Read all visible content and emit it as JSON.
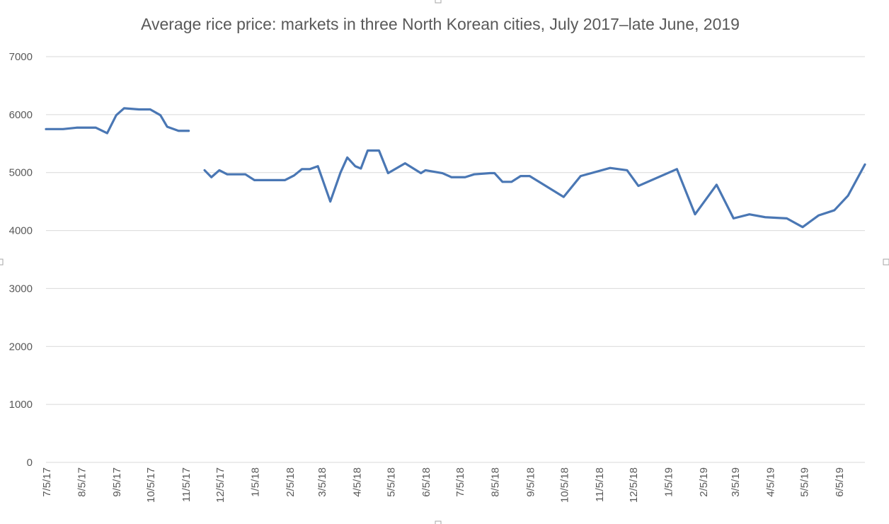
{
  "chart_data": {
    "type": "line",
    "title": "Average rice price: markets in three North Korean cities, July 2017–late June, 2019",
    "xlabel": "",
    "ylabel": "",
    "ylim": [
      0,
      7000
    ],
    "yticks": [
      0,
      1000,
      2000,
      3000,
      4000,
      5000,
      6000,
      7000
    ],
    "ytick_labels": [
      "0",
      "1000",
      "2000",
      "3000",
      "4000",
      "5000",
      "6000",
      "7000"
    ],
    "xlim": [
      "2017-07-05",
      "2019-06-28"
    ],
    "xticks": [
      "2017-07-05",
      "2017-08-05",
      "2017-09-05",
      "2017-10-05",
      "2017-11-05",
      "2017-12-05",
      "2018-01-05",
      "2018-02-05",
      "2018-03-05",
      "2018-04-05",
      "2018-05-05",
      "2018-06-05",
      "2018-07-05",
      "2018-08-05",
      "2018-09-05",
      "2018-10-05",
      "2018-11-05",
      "2018-12-05",
      "2019-01-05",
      "2019-02-05",
      "2019-03-05",
      "2019-04-05",
      "2019-05-05",
      "2019-06-05"
    ],
    "xtick_labels": [
      "7/5/17",
      "8/5/17",
      "9/5/17",
      "10/5/17",
      "11/5/17",
      "12/5/17",
      "1/5/18",
      "2/5/18",
      "3/5/18",
      "4/5/18",
      "5/5/18",
      "6/5/18",
      "7/5/18",
      "8/5/18",
      "9/5/18",
      "10/5/18",
      "11/5/18",
      "12/5/18",
      "1/5/19",
      "2/5/19",
      "3/5/19",
      "4/5/19",
      "5/5/19",
      "6/5/19"
    ],
    "grid": true,
    "legend": "none",
    "colors": {
      "line": "#4a77b4",
      "grid": "#d9d9d9",
      "text": "#595959"
    },
    "series": [
      {
        "segments": [
          [
            {
              "x": "2017-07-05",
              "y": 5750
            },
            {
              "x": "2017-07-12",
              "y": 5750
            },
            {
              "x": "2017-07-20",
              "y": 5750
            },
            {
              "x": "2017-08-01",
              "y": 5775
            },
            {
              "x": "2017-08-10",
              "y": 5775
            },
            {
              "x": "2017-08-18",
              "y": 5775
            },
            {
              "x": "2017-08-28",
              "y": 5680
            },
            {
              "x": "2017-09-05",
              "y": 5990
            },
            {
              "x": "2017-09-12",
              "y": 6110
            },
            {
              "x": "2017-09-25",
              "y": 6090
            },
            {
              "x": "2017-10-05",
              "y": 6090
            },
            {
              "x": "2017-10-14",
              "y": 5990
            },
            {
              "x": "2017-10-20",
              "y": 5790
            },
            {
              "x": "2017-10-30",
              "y": 5720
            },
            {
              "x": "2017-11-08",
              "y": 5720
            }
          ],
          [
            {
              "x": "2017-11-22",
              "y": 5040
            },
            {
              "x": "2017-11-28",
              "y": 4920
            },
            {
              "x": "2017-12-05",
              "y": 5040
            },
            {
              "x": "2017-12-12",
              "y": 4970
            },
            {
              "x": "2017-12-28",
              "y": 4970
            },
            {
              "x": "2018-01-05",
              "y": 4870
            },
            {
              "x": "2018-01-20",
              "y": 4870
            },
            {
              "x": "2018-02-01",
              "y": 4870
            },
            {
              "x": "2018-02-09",
              "y": 4950
            },
            {
              "x": "2018-02-16",
              "y": 5060
            },
            {
              "x": "2018-02-23",
              "y": 5060
            },
            {
              "x": "2018-03-02",
              "y": 5110
            },
            {
              "x": "2018-03-13",
              "y": 4500
            },
            {
              "x": "2018-03-22",
              "y": 5000
            },
            {
              "x": "2018-03-28",
              "y": 5260
            },
            {
              "x": "2018-04-04",
              "y": 5110
            },
            {
              "x": "2018-04-09",
              "y": 5070
            },
            {
              "x": "2018-04-15",
              "y": 5380
            },
            {
              "x": "2018-04-25",
              "y": 5380
            },
            {
              "x": "2018-05-03",
              "y": 4990
            },
            {
              "x": "2018-05-18",
              "y": 5160
            },
            {
              "x": "2018-06-01",
              "y": 4990
            },
            {
              "x": "2018-06-05",
              "y": 5040
            },
            {
              "x": "2018-06-20",
              "y": 4990
            },
            {
              "x": "2018-06-28",
              "y": 4920
            },
            {
              "x": "2018-07-10",
              "y": 4920
            },
            {
              "x": "2018-07-18",
              "y": 4970
            },
            {
              "x": "2018-08-01",
              "y": 4990
            },
            {
              "x": "2018-08-05",
              "y": 4990
            },
            {
              "x": "2018-08-12",
              "y": 4840
            },
            {
              "x": "2018-08-20",
              "y": 4840
            },
            {
              "x": "2018-08-28",
              "y": 4940
            },
            {
              "x": "2018-09-05",
              "y": 4940
            },
            {
              "x": "2018-10-05",
              "y": 4580
            },
            {
              "x": "2018-10-20",
              "y": 4940
            },
            {
              "x": "2018-11-15",
              "y": 5080
            },
            {
              "x": "2018-11-30",
              "y": 5040
            },
            {
              "x": "2018-12-10",
              "y": 4770
            },
            {
              "x": "2019-01-13",
              "y": 5060
            },
            {
              "x": "2019-01-29",
              "y": 4280
            },
            {
              "x": "2019-02-17",
              "y": 4790
            },
            {
              "x": "2019-03-04",
              "y": 4210
            },
            {
              "x": "2019-03-18",
              "y": 4280
            },
            {
              "x": "2019-04-01",
              "y": 4230
            },
            {
              "x": "2019-04-20",
              "y": 4210
            },
            {
              "x": "2019-05-04",
              "y": 4060
            },
            {
              "x": "2019-05-18",
              "y": 4260
            },
            {
              "x": "2019-06-01",
              "y": 4350
            },
            {
              "x": "2019-06-13",
              "y": 4600
            },
            {
              "x": "2019-06-28",
              "y": 5140
            }
          ]
        ]
      }
    ]
  }
}
